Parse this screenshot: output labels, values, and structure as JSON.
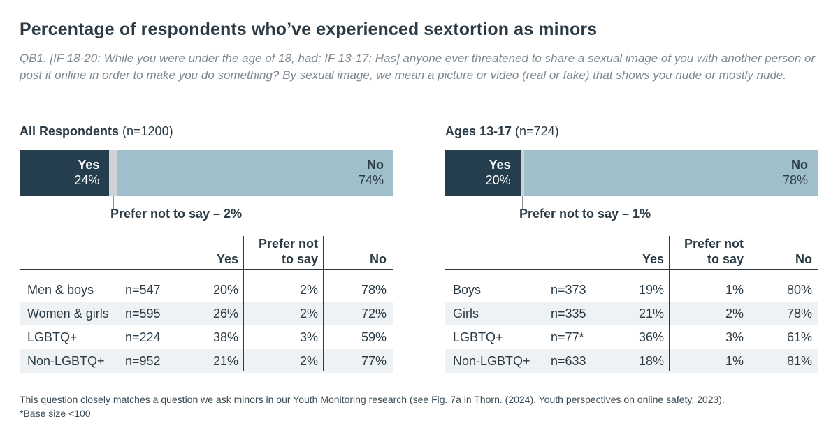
{
  "title": "Percentage of respondents who’ve experienced sextortion as minors",
  "question": "QB1. [IF 18-20: While you were under the age of 18, had; IF 13-17: Has] anyone ever threatened to share a sexual image of you with another person or post it online in order to make you do something? By sexual image, we mean a picture or video (real or fake) that shows you nude or mostly nude.",
  "colors": {
    "yes": "#243e4e",
    "prefer_not": "#cfd3d5",
    "no": "#9fbfca",
    "row_shade": "#eef2f4",
    "text": "#2b3a44"
  },
  "chart_data": [
    {
      "type": "bar",
      "orientation": "stacked-horizontal",
      "title_bold": "All Respondents",
      "title_n": "(n=1200)",
      "segments": [
        {
          "name": "Yes",
          "value": 24,
          "label": "24%"
        },
        {
          "name": "Prefer not to say",
          "value": 2,
          "label": "Prefer not to say – 2%"
        },
        {
          "name": "No",
          "value": 74,
          "label": "74%"
        }
      ],
      "table": {
        "headers": {
          "yes": "Yes",
          "prefer_line1": "Prefer not",
          "prefer_line2": "to say",
          "no": "No"
        },
        "rows": [
          {
            "group": "Men & boys",
            "n": "n=547",
            "yes": "20%",
            "prefer": "2%",
            "no": "78%"
          },
          {
            "group": "Women & girls",
            "n": "n=595",
            "yes": "26%",
            "prefer": "2%",
            "no": "72%"
          },
          {
            "group": "LGBTQ+",
            "n": "n=224",
            "yes": "38%",
            "prefer": "3%",
            "no": "59%"
          },
          {
            "group": "Non-LGBTQ+",
            "n": "n=952",
            "yes": "21%",
            "prefer": "2%",
            "no": "77%"
          }
        ]
      }
    },
    {
      "type": "bar",
      "orientation": "stacked-horizontal",
      "title_bold": "Ages 13-17",
      "title_n": "(n=724)",
      "segments": [
        {
          "name": "Yes",
          "value": 20,
          "label": "20%"
        },
        {
          "name": "Prefer not to say",
          "value": 1,
          "label": "Prefer not to say – 1%"
        },
        {
          "name": "No",
          "value": 78,
          "label": "78%"
        }
      ],
      "table": {
        "headers": {
          "yes": "Yes",
          "prefer_line1": "Prefer not",
          "prefer_line2": "to say",
          "no": "No"
        },
        "rows": [
          {
            "group": "Boys",
            "n": "n=373",
            "yes": "19%",
            "prefer": "1%",
            "no": "80%"
          },
          {
            "group": "Girls",
            "n": "n=335",
            "yes": "21%",
            "prefer": "2%",
            "no": "78%"
          },
          {
            "group": "LGBTQ+",
            "n": "n=77*",
            "yes": "36%",
            "prefer": "3%",
            "no": "61%"
          },
          {
            "group": "Non-LGBTQ+",
            "n": "n=633",
            "yes": "18%",
            "prefer": "1%",
            "no": "81%"
          }
        ]
      }
    }
  ],
  "footnote": {
    "line1": "This question closely matches a question we ask minors in our Youth Monitoring research (see Fig. 7a in Thorn. (2024). Youth perspectives on online safety, 2023).",
    "line2": "*Base size <100"
  }
}
